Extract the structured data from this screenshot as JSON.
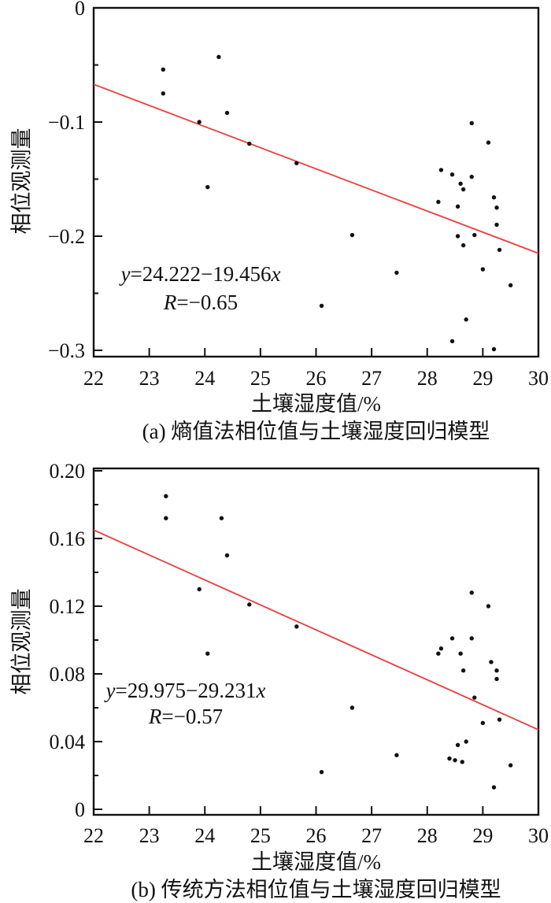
{
  "colors": {
    "accent_red": "#ed3c3c",
    "point_black": "#111111",
    "axis_ink": "#111111"
  },
  "chart_data": [
    {
      "type": "scatter",
      "title": "(a) 熵值法相位值与土壤湿度回归模型",
      "xlabel": "土壤湿度值/%",
      "ylabel": "相位观测量",
      "xlim": [
        22,
        30
      ],
      "ylim": [
        -0.3,
        0
      ],
      "xticks": [
        22,
        23,
        24,
        25,
        26,
        27,
        28,
        29,
        30
      ],
      "xtick_labels": [
        "22",
        "23",
        "24",
        "25",
        "26",
        "27",
        "28",
        "29",
        "30"
      ],
      "yticks": [
        0,
        -0.1,
        -0.2,
        -0.3
      ],
      "ytick_labels": [
        "0",
        "−0.1",
        "−0.2",
        "−0.3"
      ],
      "yminor": [
        -0.05,
        -0.15,
        -0.25
      ],
      "grid": false,
      "legend": "none",
      "annotation": {
        "equation": "y=24.222−19.456x",
        "r_label": "R=−0.65"
      },
      "regression_line": {
        "x": [
          22,
          30
        ],
        "y": [
          -0.067,
          -0.215
        ]
      },
      "points": [
        [
          23.25,
          -0.054
        ],
        [
          23.25,
          -0.075
        ],
        [
          23.9,
          -0.1
        ],
        [
          24.05,
          -0.157
        ],
        [
          24.25,
          -0.043
        ],
        [
          24.4,
          -0.092
        ],
        [
          24.8,
          -0.119
        ],
        [
          25.65,
          -0.136
        ],
        [
          26.1,
          -0.261
        ],
        [
          26.65,
          -0.199
        ],
        [
          27.45,
          -0.232
        ],
        [
          28.2,
          -0.17
        ],
        [
          28.25,
          -0.142
        ],
        [
          28.45,
          -0.146
        ],
        [
          28.45,
          -0.292
        ],
        [
          28.55,
          -0.174
        ],
        [
          28.55,
          -0.2
        ],
        [
          28.6,
          -0.154
        ],
        [
          28.65,
          -0.159
        ],
        [
          28.65,
          -0.208
        ],
        [
          28.7,
          -0.273
        ],
        [
          28.8,
          -0.101
        ],
        [
          28.8,
          -0.148
        ],
        [
          28.85,
          -0.199
        ],
        [
          29.0,
          -0.229
        ],
        [
          29.1,
          -0.118
        ],
        [
          29.2,
          -0.166
        ],
        [
          29.2,
          -0.299
        ],
        [
          29.25,
          -0.175
        ],
        [
          29.25,
          -0.19
        ],
        [
          29.3,
          -0.212
        ],
        [
          29.5,
          -0.243
        ]
      ]
    },
    {
      "type": "scatter",
      "title": "(b) 传统方法相位值与土壤湿度回归模型",
      "xlabel": "土壤湿度值/%",
      "ylabel": "相位观测量",
      "xlim": [
        22,
        30
      ],
      "ylim": [
        0,
        0.2
      ],
      "xticks": [
        22,
        23,
        24,
        25,
        26,
        27,
        28,
        29,
        30
      ],
      "xtick_labels": [
        "22",
        "23",
        "24",
        "25",
        "26",
        "27",
        "28",
        "29",
        "30"
      ],
      "yticks": [
        0.2,
        0.16,
        0.12,
        0.08,
        0.04,
        0
      ],
      "ytick_labels": [
        "0.20",
        "0.16",
        "0.12",
        "0.08",
        "0.04",
        "0"
      ],
      "yminor": [
        0.18,
        0.14,
        0.1,
        0.06,
        0.02
      ],
      "grid": false,
      "legend": "none",
      "annotation": {
        "equation": "y=29.975−29.231x",
        "r_label": "R=−0.57"
      },
      "regression_line": {
        "x": [
          22,
          30
        ],
        "y": [
          0.165,
          0.047
        ]
      },
      "points": [
        [
          23.3,
          0.185
        ],
        [
          23.3,
          0.172
        ],
        [
          23.9,
          0.13
        ],
        [
          24.05,
          0.092
        ],
        [
          24.3,
          0.172
        ],
        [
          24.4,
          0.15
        ],
        [
          24.8,
          0.121
        ],
        [
          25.65,
          0.108
        ],
        [
          26.1,
          0.022
        ],
        [
          26.65,
          0.06
        ],
        [
          27.45,
          0.032
        ],
        [
          28.2,
          0.092
        ],
        [
          28.25,
          0.095
        ],
        [
          28.4,
          0.03
        ],
        [
          28.45,
          0.101
        ],
        [
          28.5,
          0.029
        ],
        [
          28.55,
          0.038
        ],
        [
          28.6,
          0.092
        ],
        [
          28.63,
          0.028
        ],
        [
          28.65,
          0.082
        ],
        [
          28.7,
          0.04
        ],
        [
          28.8,
          0.128
        ],
        [
          28.8,
          0.101
        ],
        [
          28.85,
          0.066
        ],
        [
          29.0,
          0.051
        ],
        [
          29.1,
          0.12
        ],
        [
          29.15,
          0.087
        ],
        [
          29.2,
          0.013
        ],
        [
          29.25,
          0.082
        ],
        [
          29.25,
          0.077
        ],
        [
          29.3,
          0.053
        ],
        [
          29.5,
          0.026
        ]
      ]
    }
  ]
}
